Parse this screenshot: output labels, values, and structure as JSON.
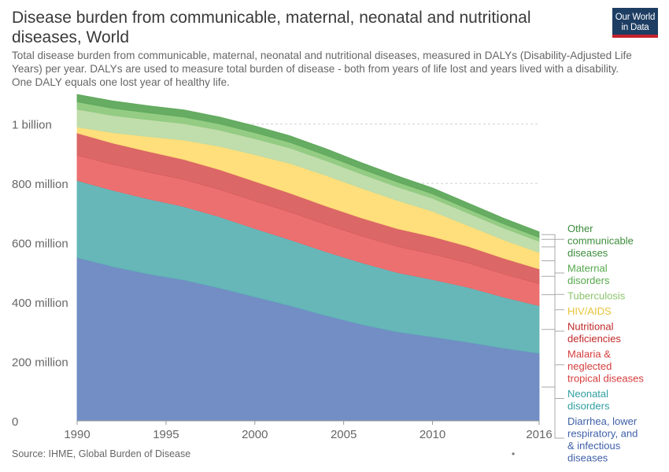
{
  "header": {
    "title": "Disease burden from communicable, maternal, neonatal and nutritional diseases, World",
    "subtitle": "Total disease burden from communicable, maternal, neonatal and nutritional diseases, measured in DALYs (Disability-Adjusted Life Years) per year. DALYs are used to measure total burden of disease - both from years of life lost and years lived with a disability. One DALY equals one lost year of healthy life.",
    "logo_line1": "Our World",
    "logo_line2": "in Data"
  },
  "footer": {
    "source": "Source: IHME, Global Burden of Disease",
    "dot": "•"
  },
  "chart_data": {
    "type": "area",
    "stacked": true,
    "x": [
      1990,
      1992,
      1994,
      1996,
      1998,
      2000,
      2002,
      2004,
      2006,
      2008,
      2010,
      2012,
      2014,
      2016
    ],
    "xticks": [
      1990,
      1995,
      2000,
      2005,
      2010,
      2016
    ],
    "ylim": [
      0,
      1100000000
    ],
    "yticks": [
      {
        "value": 0,
        "label": "0"
      },
      {
        "value": 200000000,
        "label": "200 million"
      },
      {
        "value": 400000000,
        "label": "400 million"
      },
      {
        "value": 600000000,
        "label": "600 million"
      },
      {
        "value": 800000000,
        "label": "800 million"
      },
      {
        "value": 1000000000,
        "label": "1 billion"
      }
    ],
    "grid": "horizontal dashed",
    "legend_position": "right",
    "series": [
      {
        "name": "Diarrhea, lower respiratory, and & infectious diseases",
        "color": "#6a88c2",
        "values": [
          550000000,
          520000000,
          495000000,
          475000000,
          448000000,
          418000000,
          388000000,
          355000000,
          325000000,
          300000000,
          283000000,
          265000000,
          245000000,
          228000000
        ]
      },
      {
        "name": "Neonatal disorders",
        "color": "#5fb3b5",
        "values": [
          260000000,
          257000000,
          253000000,
          247000000,
          240000000,
          230000000,
          222000000,
          215000000,
          208000000,
          200000000,
          193000000,
          185000000,
          172000000,
          160000000
        ]
      },
      {
        "name": "Malaria & neglected tropical diseases",
        "color": "#ec6868",
        "values": [
          85000000,
          87000000,
          90000000,
          91000000,
          92000000,
          93000000,
          93000000,
          92000000,
          90000000,
          88000000,
          86000000,
          82000000,
          78000000,
          74000000
        ]
      },
      {
        "name": "Nutritional deficiencies",
        "color": "#d95f5f",
        "values": [
          75000000,
          72000000,
          70000000,
          68000000,
          67000000,
          66000000,
          64000000,
          62000000,
          61000000,
          60000000,
          59000000,
          56000000,
          53000000,
          50000000
        ]
      },
      {
        "name": "HIV/AIDS",
        "color": "#ffdd74",
        "values": [
          20000000,
          35000000,
          50000000,
          65000000,
          78000000,
          90000000,
          100000000,
          103000000,
          100000000,
          95000000,
          85000000,
          70000000,
          62000000,
          55000000
        ]
      },
      {
        "name": "Tuberculosis",
        "color": "#bddba8",
        "values": [
          60000000,
          58000000,
          57000000,
          56000000,
          55000000,
          54000000,
          52000000,
          50000000,
          48000000,
          46000000,
          44000000,
          42000000,
          40000000,
          38000000
        ]
      },
      {
        "name": "Maternal disorders",
        "color": "#8ec97d",
        "values": [
          25000000,
          24000000,
          23000000,
          22000000,
          21000000,
          20000000,
          19000000,
          18000000,
          17000000,
          16000000,
          15000000,
          14000000,
          14000000,
          13000000
        ]
      },
      {
        "name": "Other communicable diseases",
        "color": "#5ea85a",
        "values": [
          25000000,
          25000000,
          24000000,
          24000000,
          23000000,
          23000000,
          22000000,
          22000000,
          21000000,
          21000000,
          20000000,
          20000000,
          19000000,
          19000000
        ]
      }
    ]
  }
}
